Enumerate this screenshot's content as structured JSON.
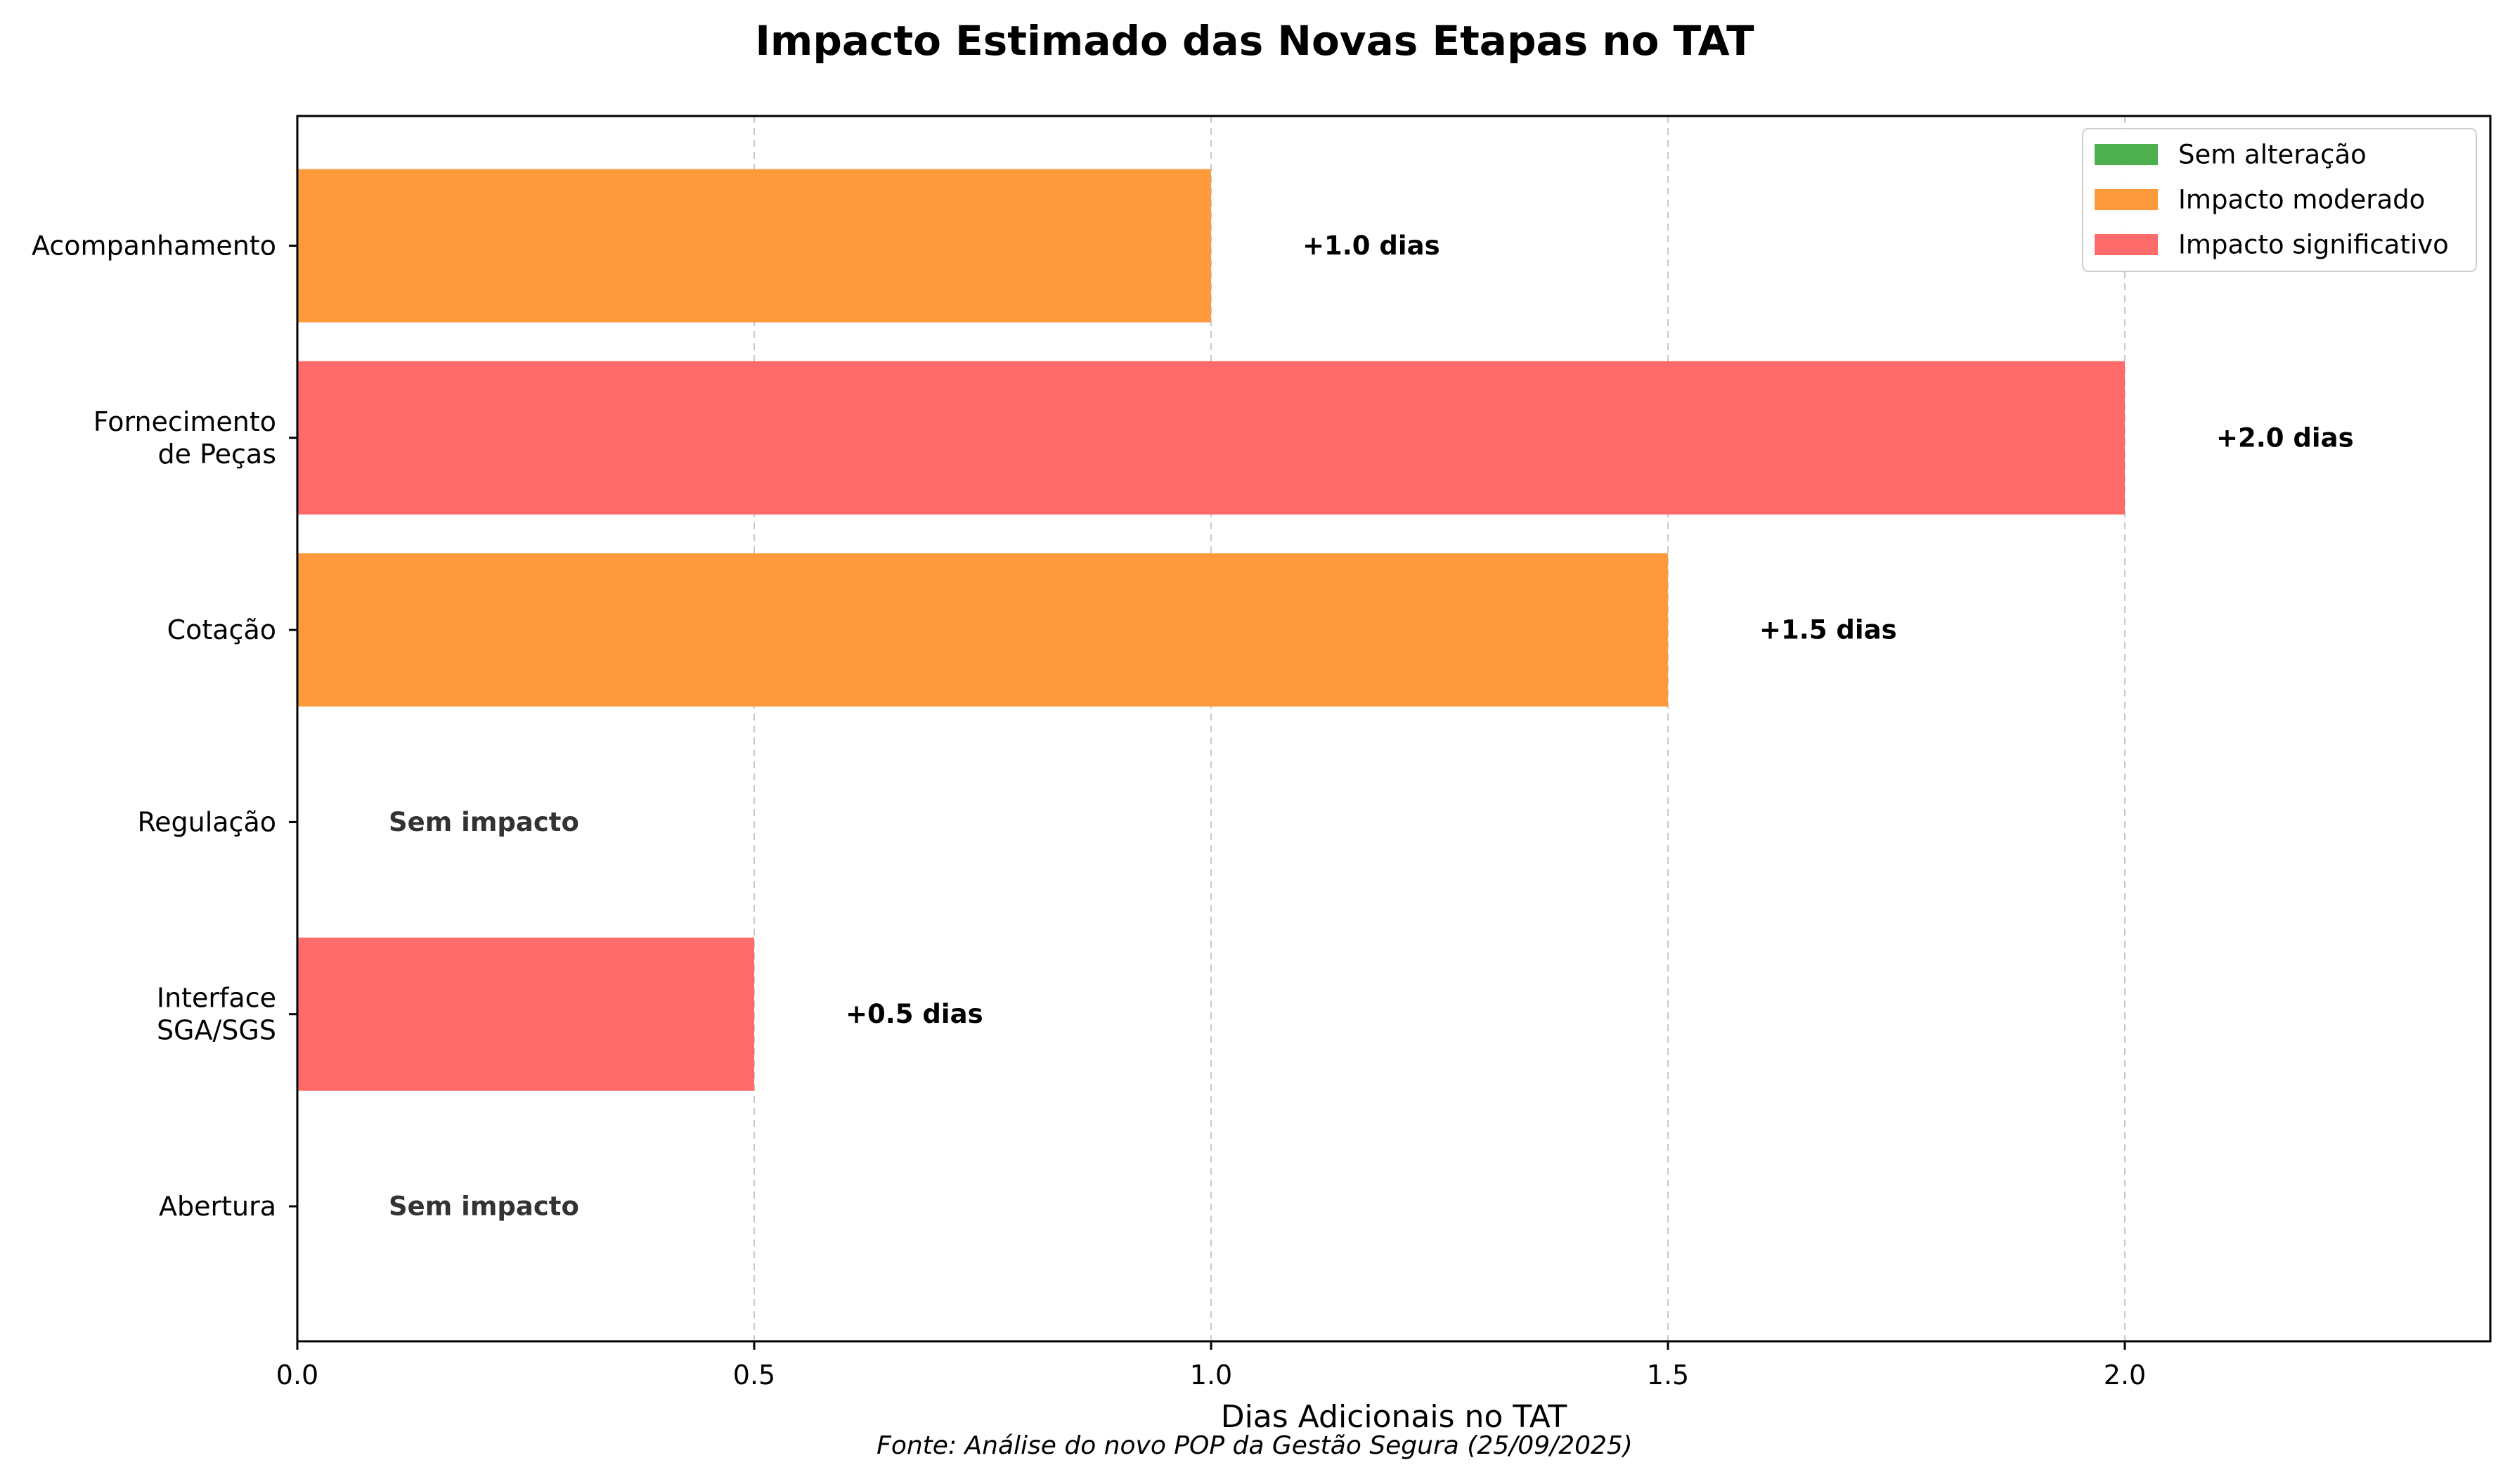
{
  "chart_data": {
    "type": "bar",
    "orientation": "horizontal",
    "title": "Impacto Estimado das Novas Etapas no TAT",
    "xlabel": "Dias Adicionais no TAT",
    "ylabel": "",
    "xlim": [
      0,
      2.4
    ],
    "x_ticks": [
      "0.0",
      "0.5",
      "1.0",
      "1.5",
      "2.0"
    ],
    "x_tick_values": [
      0,
      0.5,
      1.0,
      1.5,
      2.0
    ],
    "grid": "vertical dashed",
    "legend_position": "top-right",
    "legend": [
      {
        "label": "Sem alteração",
        "color": "#4CAF50"
      },
      {
        "label": "Impacto moderado",
        "color": "#FF9A3C"
      },
      {
        "label": "Impacto significativo",
        "color": "#FF6B6B"
      }
    ],
    "categories": [
      [
        "Abertura"
      ],
      [
        "Interface",
        "SGA/SGS"
      ],
      [
        "Regulação"
      ],
      [
        "Cotação"
      ],
      [
        "Fornecimento",
        "de Peças"
      ],
      [
        "Acompanhamento"
      ]
    ],
    "values": [
      0,
      0.5,
      0,
      1.5,
      2.0,
      1.0
    ],
    "impact_levels": [
      "Sem alteração",
      "Impacto significativo",
      "Sem alteração",
      "Impacto moderado",
      "Impacto significativo",
      "Impacto moderado"
    ],
    "bar_colors": [
      "#4CAF50",
      "#FF6B6B",
      "#4CAF50",
      "#FF9A3C",
      "#FF6B6B",
      "#FF9A3C"
    ],
    "data_labels": [
      "Sem impacto",
      "+0.5 dias",
      "Sem impacto",
      "+1.5 dias",
      "+2.0 dias",
      "+1.0 dias"
    ],
    "source_note": "Fonte: Análise do novo POP da Gestão Segura (25/09/2025)"
  }
}
